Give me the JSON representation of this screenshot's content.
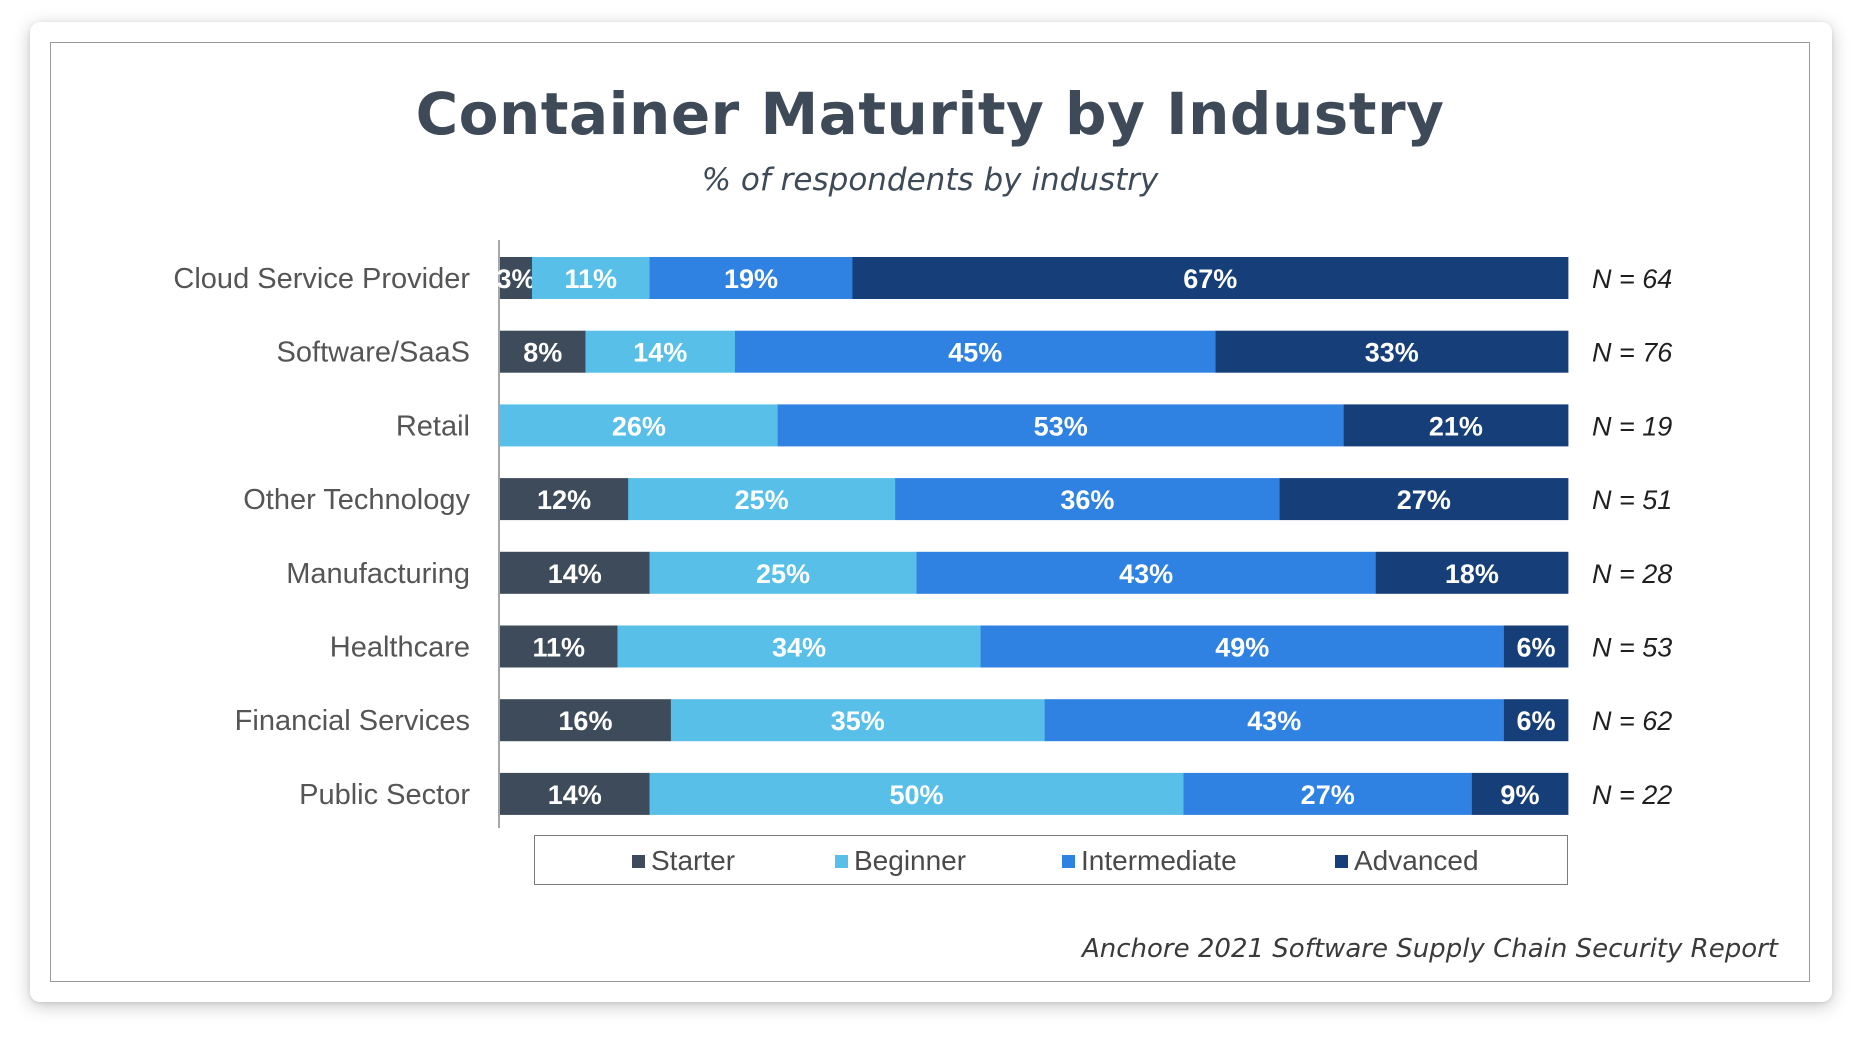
{
  "chart_data": {
    "type": "bar",
    "orientation": "horizontal",
    "stacked": true,
    "title": "Container Maturity by Industry",
    "subtitle": "% of respondents by industry",
    "source": "Anchore 2021 Software Supply Chain Security Report",
    "categories": [
      "Cloud Service Provider",
      "Software/SaaS",
      "Retail",
      "Other Technology",
      "Manufacturing",
      "Healthcare",
      "Financial Services",
      "Public Sector"
    ],
    "n_labels": [
      "N = 64",
      "N = 76",
      "N = 19",
      "N = 51",
      "N = 28",
      "N = 53",
      "N = 62",
      "N = 22"
    ],
    "series": [
      {
        "name": "Starter",
        "color": "#3d4b5a",
        "values": [
          3,
          8,
          0,
          12,
          14,
          11,
          16,
          14
        ]
      },
      {
        "name": "Beginner",
        "color": "#58c0e8",
        "values": [
          11,
          14,
          26,
          25,
          25,
          34,
          35,
          50
        ]
      },
      {
        "name": "Intermediate",
        "color": "#2f82e2",
        "values": [
          19,
          45,
          53,
          36,
          43,
          49,
          43,
          27
        ]
      },
      {
        "name": "Advanced",
        "color": "#163e78",
        "values": [
          67,
          33,
          21,
          27,
          18,
          6,
          6,
          9
        ]
      }
    ],
    "xlim": [
      0,
      100
    ],
    "legend": "bottom"
  }
}
